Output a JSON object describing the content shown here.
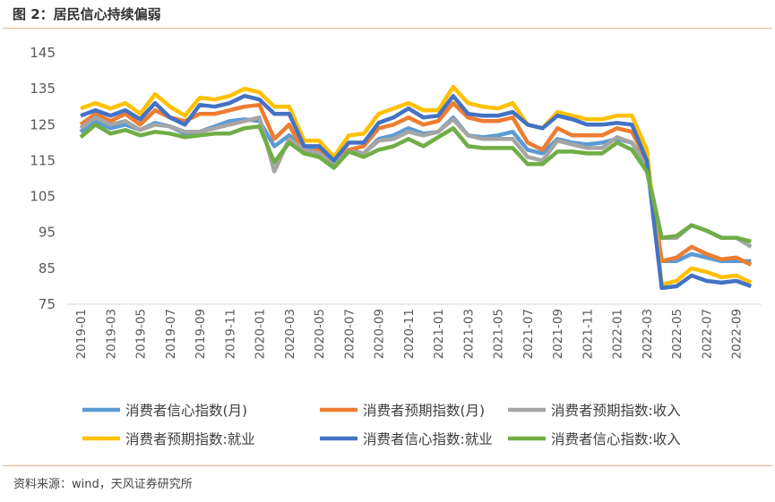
{
  "title": "图 2：居民信心持续偏弱",
  "source": "资料来源：wind，天风证券研究所",
  "chart_data": {
    "type": "line",
    "title": "图 2：居民信心持续偏弱",
    "xlabel": "",
    "ylabel": "",
    "ylim": [
      75,
      145
    ],
    "yticks": [
      75,
      85,
      95,
      105,
      115,
      125,
      135,
      145
    ],
    "grid": false,
    "legend_position": "bottom",
    "x": [
      "2019-01",
      "2019-02",
      "2019-03",
      "2019-04",
      "2019-05",
      "2019-06",
      "2019-07",
      "2019-08",
      "2019-09",
      "2019-10",
      "2019-11",
      "2019-12",
      "2020-01",
      "2020-02",
      "2020-03",
      "2020-04",
      "2020-05",
      "2020-06",
      "2020-07",
      "2020-08",
      "2020-09",
      "2020-10",
      "2020-11",
      "2020-12",
      "2021-01",
      "2021-02",
      "2021-03",
      "2021-04",
      "2021-05",
      "2021-06",
      "2021-07",
      "2021-08",
      "2021-09",
      "2021-10",
      "2021-11",
      "2021-12",
      "2022-01",
      "2022-02",
      "2022-03",
      "2022-04",
      "2022-05",
      "2022-06",
      "2022-07",
      "2022-08",
      "2022-09",
      "2022-10"
    ],
    "xtick_labels": [
      "2019-01",
      "2019-03",
      "2019-05",
      "2019-07",
      "2019-09",
      "2019-11",
      "2020-01",
      "2020-03",
      "2020-05",
      "2020-07",
      "2020-09",
      "2020-11",
      "2021-01",
      "2021-03",
      "2021-05",
      "2021-07",
      "2021-09",
      "2021-11",
      "2022-01",
      "2022-03",
      "2022-05",
      "2022-07",
      "2022-09"
    ],
    "series": [
      {
        "name": "消费者信心指数(月)",
        "color": "#5b9bd5",
        "values": [
          123,
          126,
          124,
          125,
          123.5,
          125.5,
          124.5,
          122.5,
          123,
          124.5,
          126,
          126.5,
          126,
          119,
          122,
          118,
          118,
          114,
          118,
          117,
          121,
          122,
          124,
          122.5,
          123,
          127,
          122,
          121.5,
          122,
          123,
          118,
          117,
          121,
          120,
          119.5,
          120,
          121,
          120,
          114,
          87,
          87,
          89,
          88,
          87,
          87,
          87
        ]
      },
      {
        "name": "消费者预期指数(月)",
        "color": "#ed7d31",
        "values": [
          125,
          128,
          126,
          128,
          125,
          129,
          127,
          126,
          128,
          128,
          129,
          130,
          130.5,
          121,
          125,
          117,
          118,
          114,
          118,
          119,
          124,
          125,
          127,
          125,
          126,
          131,
          127,
          126,
          126,
          127,
          120,
          118,
          124,
          122,
          122,
          122,
          124,
          123,
          115,
          87,
          88,
          91,
          89,
          87.5,
          88,
          86
        ]
      },
      {
        "name": "消费者预期指数:收入",
        "color": "#a5a5a5",
        "values": [
          124,
          127,
          125,
          126,
          123.5,
          125,
          124.5,
          123,
          123,
          124,
          125,
          126,
          127,
          112,
          121,
          118,
          117,
          114,
          117.5,
          117,
          120.5,
          121,
          123,
          122,
          123,
          126.5,
          122,
          121,
          121,
          121,
          116,
          115,
          120.5,
          119.5,
          118.5,
          118.5,
          121.5,
          120,
          113,
          93.5,
          93.5,
          97,
          95.5,
          93.5,
          93.5,
          91
        ]
      },
      {
        "name": "消费者预期指数:就业",
        "color": "#ffc000",
        "values": [
          129.5,
          131,
          129.5,
          131,
          128,
          133.5,
          130,
          127.5,
          132.5,
          132,
          133,
          135,
          134,
          130,
          130,
          120.5,
          120.5,
          116,
          122,
          122.5,
          128,
          129.5,
          131,
          129,
          129,
          135.5,
          131,
          130,
          129.5,
          131,
          125,
          124,
          128.5,
          127.5,
          126.5,
          126.5,
          127.5,
          127.5,
          118,
          80.5,
          81.5,
          85,
          84,
          82.5,
          83,
          81
        ]
      },
      {
        "name": "消费者信心指数:就业",
        "color": "#4472c4",
        "values": [
          127.5,
          129,
          127.5,
          129,
          126.5,
          131,
          127,
          125,
          130.5,
          130,
          131,
          133,
          132,
          128,
          128,
          119,
          119,
          115,
          120,
          120,
          125.5,
          127,
          129.5,
          127,
          127.5,
          133,
          128,
          127.5,
          127.5,
          128.5,
          125,
          124,
          127.5,
          126.5,
          125,
          125,
          125.5,
          125,
          115,
          79.5,
          80,
          83,
          81.5,
          81,
          81.5,
          80
        ]
      },
      {
        "name": "消费者信心指数:收入",
        "color": "#70ad47",
        "values": [
          121.5,
          125,
          122.5,
          123.5,
          122,
          123,
          122.5,
          121.5,
          122,
          122.5,
          122.5,
          124,
          124.5,
          114.5,
          120,
          117,
          116,
          113,
          117.5,
          116,
          118,
          119,
          121,
          119,
          121.5,
          124,
          119,
          118.5,
          118.5,
          118.5,
          114,
          114,
          117.5,
          117.5,
          117,
          117,
          120,
          118,
          112,
          93.5,
          94,
          97,
          95.5,
          93.5,
          93.5,
          92.5
        ]
      }
    ]
  }
}
